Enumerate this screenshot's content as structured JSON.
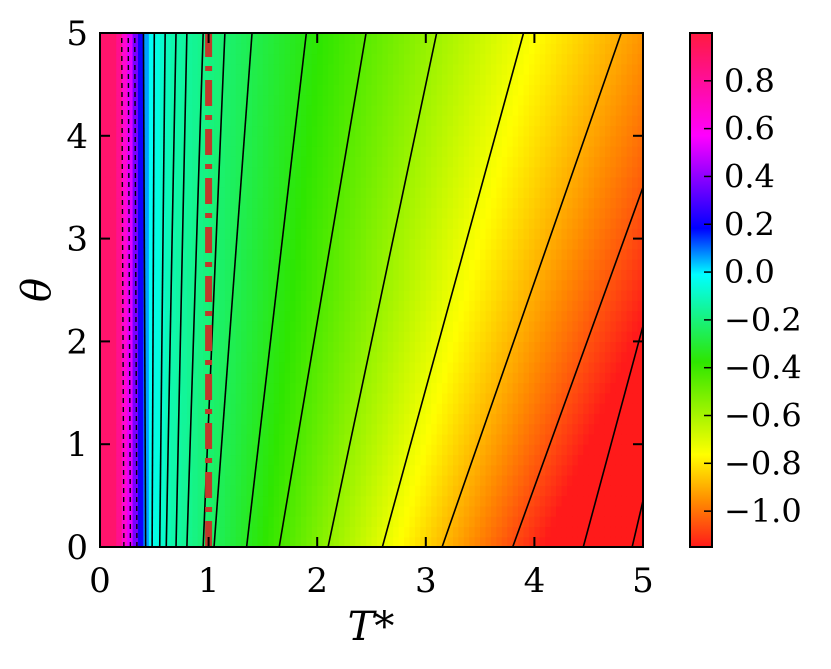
{
  "chart_data": {
    "type": "heatmap",
    "title": "",
    "xlabel": "T*",
    "ylabel": "θ",
    "xlim": [
      0,
      5
    ],
    "ylim": [
      0,
      5
    ],
    "x_ticks": [
      0,
      1,
      2,
      3,
      4,
      5
    ],
    "y_ticks": [
      0,
      1,
      2,
      3,
      4,
      5
    ],
    "x_tick_labels": [
      "0",
      "1",
      "2",
      "3",
      "4",
      "5"
    ],
    "y_tick_labels": [
      "0",
      "1",
      "2",
      "3",
      "4",
      "5"
    ],
    "colorbar": {
      "range": [
        -1.15,
        1.0
      ],
      "ticks": [
        0.8,
        0.6,
        0.4,
        0.2,
        0.0,
        -0.2,
        -0.4,
        -0.6,
        -0.8,
        -1.0
      ],
      "tick_labels": [
        "0.8",
        "0.6",
        "0.4",
        "0.2",
        "0.0",
        "−0.2",
        "−0.4",
        "−0.6",
        "−0.8",
        "−1.0"
      ],
      "colormap": [
        "#ff1a1a",
        "#ff8c00",
        "#ffff00",
        "#2ee600",
        "#00ffff",
        "#0000ff",
        "#ff00ff",
        "#ff1a40"
      ],
      "position": "right"
    },
    "reference_line": {
      "x": 1,
      "style": "dash-dot",
      "color": "#c0392b"
    },
    "contour_lines": [
      {
        "bottom_x": 0.42,
        "top_x": 0.4
      },
      {
        "bottom_x": 0.48,
        "top_x": 0.5
      },
      {
        "bottom_x": 0.55,
        "top_x": 0.6
      },
      {
        "bottom_x": 0.61,
        "top_x": 0.7
      },
      {
        "bottom_x": 0.7,
        "top_x": 0.8
      },
      {
        "bottom_x": 0.8,
        "top_x": 0.95
      },
      {
        "bottom_x": 0.95,
        "top_x": 1.15
      },
      {
        "bottom_x": 1.05,
        "top_x": 1.4
      },
      {
        "bottom_x": 1.35,
        "top_x": 1.9
      },
      {
        "bottom_x": 1.65,
        "top_x": 2.45
      },
      {
        "bottom_x": 2.1,
        "top_x": 3.1
      },
      {
        "bottom_x": 2.6,
        "top_x": 3.9
      },
      {
        "bottom_x": 3.15,
        "top_x": 4.8
      },
      {
        "bottom_x": 3.8,
        "top_x": 5.0,
        "top_y": 3.5
      },
      {
        "bottom_x": 4.45,
        "top_x": 5.0,
        "top_y": 2.15
      },
      {
        "bottom_x": 5.0,
        "bottom_y": 0.4,
        "top_x": 5.0,
        "top_y": 1.2
      },
      {
        "bottom_x": 4.9,
        "top_x": 5.0,
        "top_y": 0.45
      }
    ],
    "dashed_contour_lines": [
      {
        "bottom_x": 0.22,
        "top_x": 0.2
      },
      {
        "bottom_x": 0.28,
        "top_x": 0.26
      },
      {
        "bottom_x": 0.34,
        "top_x": 0.32
      }
    ]
  }
}
